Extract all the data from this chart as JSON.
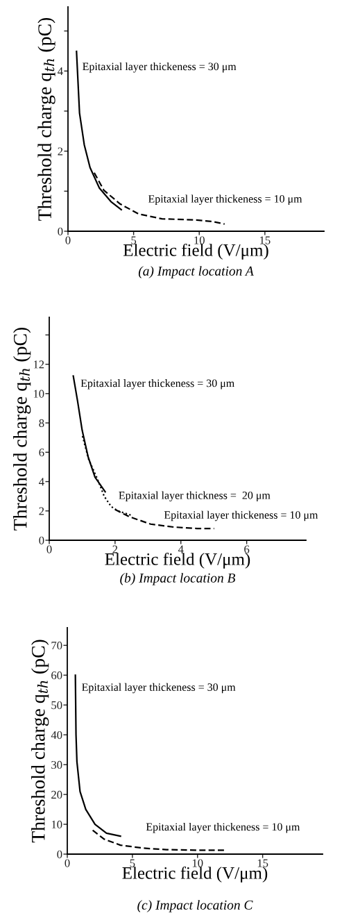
{
  "chart_data": [
    {
      "type": "line",
      "title": "(a) Impact location A",
      "xlabel": "Electric field (V/μm)",
      "ylabel": "Threshold charge q$_{th}$ (pC)",
      "xlim": [
        0,
        19.5
      ],
      "xticks": [
        0,
        5,
        10,
        15
      ],
      "ylim": [
        0,
        5.6
      ],
      "yticks": [
        0,
        {
          "value": 1,
          "label": null
        },
        2,
        {
          "value": 3,
          "label": null
        },
        4,
        {
          "value": 5,
          "label": null
        }
      ],
      "grid": false,
      "legend": false,
      "series": [
        {
          "name": "Epitaxial layer thickeness = 30 μm",
          "color": "#000000",
          "line_style": "solid",
          "x": [
            0.65,
            0.88,
            1.24,
            1.68,
            2.39,
            3.27,
            4.06
          ],
          "values": [
            4.49,
            2.95,
            2.16,
            1.59,
            1.08,
            0.74,
            0.54
          ]
        },
        {
          "name": "Epitaxial layer thickeness = 10 μm",
          "color": "#000000",
          "line_style": "dashed",
          "x": [
            2.0,
            2.74,
            3.98,
            5.39,
            7.16,
            9.8,
            11.04,
            11.93
          ],
          "values": [
            1.46,
            1.02,
            0.68,
            0.43,
            0.31,
            0.28,
            0.24,
            0.18
          ]
        }
      ]
    },
    {
      "type": "line",
      "title": "(b) Impact location B",
      "xlabel": "Electric field (V/μm)",
      "ylabel": "Threshold charge q$_{th}$ (pC)",
      "xlim": [
        0,
        7.8
      ],
      "xticks": [
        0,
        2,
        4,
        6
      ],
      "ylim": [
        0,
        15.2
      ],
      "yticks": [
        0,
        2,
        4,
        6,
        8,
        10,
        12,
        {
          "value": 14,
          "label": null
        }
      ],
      "grid": false,
      "legend": false,
      "series": [
        {
          "name": "Epitaxial layer thickeness = 30 μm",
          "color": "#000000",
          "line_style": "solid",
          "x": [
            0.73,
            0.86,
            1.0,
            1.18,
            1.39,
            1.7
          ],
          "values": [
            11.2,
            9.5,
            7.5,
            5.7,
            4.3,
            3.3
          ]
        },
        {
          "name": "Epitaxial layer thickness =  20 μm",
          "color": "#000000",
          "line_style": "dotted",
          "x": [
            1.01,
            1.2,
            1.46,
            1.67,
            1.88,
            2.09,
            2.5
          ],
          "values": [
            7.1,
            5.5,
            4.2,
            3.0,
            2.3,
            2.0,
            1.7
          ]
        },
        {
          "name": "Epitaxial layer thickeness = 10 μm",
          "color": "#000000",
          "line_style": "dashed",
          "x": [
            2.0,
            2.44,
            3.08,
            3.78,
            4.49,
            5.01
          ],
          "values": [
            2.1,
            1.6,
            1.1,
            0.9,
            0.8,
            0.8
          ]
        }
      ]
    },
    {
      "type": "line",
      "title": "(c) Impact location C",
      "xlabel": "Electric field (V/μm)",
      "ylabel": "Threshold charge q$_{th}$ (pC)",
      "xlim": [
        0,
        19.6
      ],
      "xticks": [
        0,
        5,
        10,
        15
      ],
      "ylim": [
        0,
        75.9
      ],
      "yticks": [
        0,
        10,
        20,
        30,
        40,
        50,
        60,
        70
      ],
      "grid": false,
      "legend": false,
      "series": [
        {
          "name": "Epitaxial layer thickeness = 30 μm",
          "color": "#000000",
          "line_style": "solid",
          "x": [
            0.62,
            0.67,
            0.74,
            0.98,
            1.42,
            2.13,
            3.01,
            4.08
          ],
          "values": [
            60,
            40,
            31,
            21,
            15,
            10,
            7,
            6
          ]
        },
        {
          "name": "Epitaxial layer thickeness = 10 μm",
          "color": "#000000",
          "line_style": "dashed",
          "x": [
            1.95,
            2.84,
            4.08,
            5.85,
            7.62,
            9.93,
            12.06
          ],
          "values": [
            8,
            5,
            3,
            2,
            1.5,
            1.3,
            1.3
          ]
        }
      ]
    }
  ]
}
